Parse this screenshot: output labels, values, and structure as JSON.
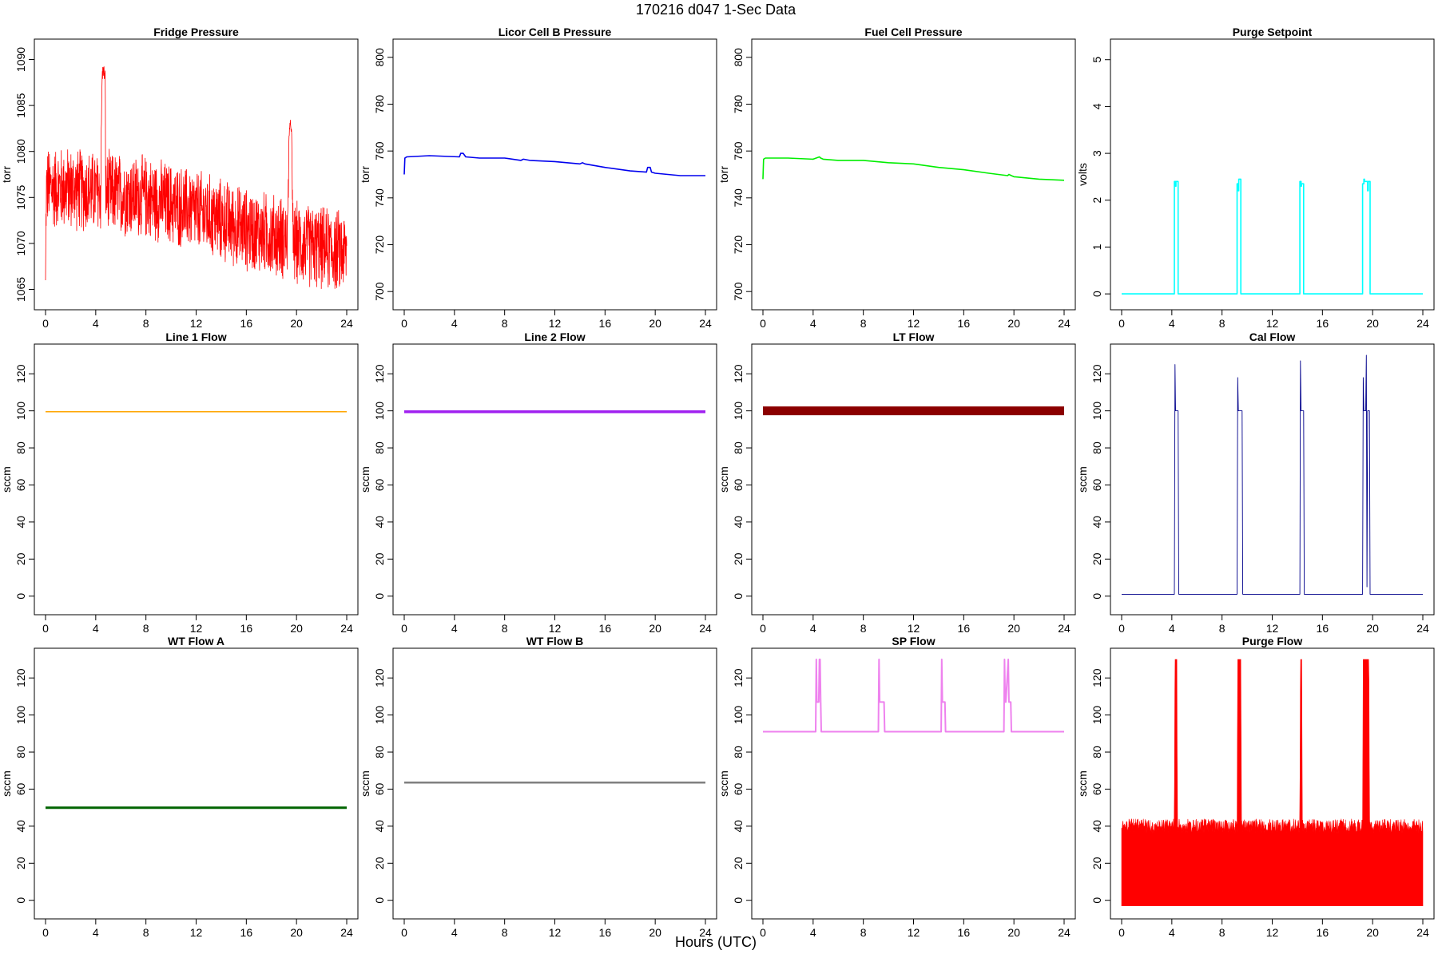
{
  "figure": {
    "title": "170216   d047   1-Sec Data",
    "xlabel": "Hours (UTC)"
  },
  "chart_data": [
    {
      "type": "line",
      "title": "Fridge Pressure",
      "ylabel": "torr",
      "color": "#ff0000",
      "xlim": [
        0,
        24
      ],
      "ylim": [
        1064,
        1091
      ],
      "xticks": [
        0,
        4,
        8,
        12,
        16,
        20,
        24
      ],
      "yticks": [
        1065,
        1070,
        1075,
        1080,
        1085,
        1090
      ],
      "noisy": true,
      "series": [
        {
          "x": [
            0,
            0.05,
            0.1,
            2,
            4.4,
            4.5,
            4.6,
            4.75,
            4.8,
            8,
            12,
            16,
            19.3,
            19.4,
            19.6,
            19.7,
            19.75,
            20,
            24
          ],
          "mean": [
            1066,
            1075,
            1076,
            1076,
            1075.5,
            1088,
            1089,
            1088,
            1075.5,
            1075,
            1073.5,
            1071.5,
            1070.5,
            1082,
            1083,
            1070.5,
            1070,
            1070,
            1069
          ],
          "band": [
            0,
            5,
            5,
            5,
            5,
            1,
            1,
            1,
            5,
            5,
            5,
            5,
            5,
            1,
            1,
            5,
            5,
            5,
            5
          ]
        }
      ]
    },
    {
      "type": "line",
      "title": "Licor Cell B Pressure",
      "ylabel": "torr",
      "color": "#0000ee",
      "xlim": [
        0,
        24
      ],
      "ylim": [
        697,
        803
      ],
      "xticks": [
        0,
        4,
        8,
        12,
        16,
        20,
        24
      ],
      "yticks": [
        700,
        720,
        740,
        760,
        780,
        800
      ],
      "series": [
        {
          "x": [
            0,
            0.05,
            0.2,
            2,
            4.4,
            4.5,
            4.7,
            4.9,
            6,
            8,
            9.3,
            9.5,
            10,
            12,
            14,
            14.2,
            14.4,
            16,
            18,
            19.3,
            19.4,
            19.6,
            19.7,
            20,
            22,
            24
          ],
          "y": [
            750,
            757,
            757.5,
            758,
            757.5,
            759,
            759,
            757.5,
            757,
            757,
            756,
            756.5,
            756,
            755.5,
            754.5,
            755,
            754.5,
            753,
            751.5,
            751,
            753,
            753,
            751,
            750.5,
            749.5,
            749.5
          ]
        }
      ]
    },
    {
      "type": "line",
      "title": "Fuel Cell Pressure",
      "ylabel": "torr",
      "color": "#00ee00",
      "xlim": [
        0,
        24
      ],
      "ylim": [
        697,
        803
      ],
      "xticks": [
        0,
        4,
        8,
        12,
        16,
        20,
        24
      ],
      "yticks": [
        700,
        720,
        740,
        760,
        780,
        800
      ],
      "series": [
        {
          "x": [
            0,
            0.05,
            0.2,
            2,
            4,
            4.5,
            4.6,
            4.8,
            6,
            8,
            10,
            12,
            14,
            16,
            18,
            19.5,
            19.6,
            19.8,
            20,
            22,
            24
          ],
          "y": [
            748,
            756.5,
            757,
            757,
            756.5,
            757.5,
            757,
            756.5,
            756,
            756,
            755,
            754.5,
            753,
            752,
            750.5,
            749.5,
            750,
            749.5,
            749,
            748,
            747.5
          ]
        }
      ]
    },
    {
      "type": "line",
      "title": "Purge Setpoint",
      "ylabel": "volts",
      "color": "#00ffff",
      "xlim": [
        0,
        24
      ],
      "ylim": [
        -0.1,
        5.2
      ],
      "xticks": [
        0,
        4,
        8,
        12,
        16,
        20,
        24
      ],
      "yticks": [
        0,
        1,
        2,
        3,
        4,
        5
      ],
      "series": [
        {
          "x": [
            0,
            4.2,
            4.2,
            4.3,
            4.3,
            4.33,
            4.33,
            4.5,
            4.5,
            9.2,
            9.2,
            9.3,
            9.3,
            9.33,
            9.33,
            9.5,
            9.5,
            14.2,
            14.2,
            14.3,
            14.3,
            14.33,
            14.33,
            14.5,
            14.5,
            19.2,
            19.2,
            19.3,
            19.3,
            19.35,
            19.35,
            19.6,
            19.6,
            19.65,
            19.65,
            19.8,
            19.8,
            24
          ],
          "y": [
            0,
            0,
            2.4,
            2.4,
            2.3,
            2.3,
            2.4,
            2.4,
            0,
            0,
            2.35,
            2.35,
            2.2,
            2.2,
            2.45,
            2.45,
            0,
            0,
            2.4,
            2.4,
            2.3,
            2.3,
            2.35,
            2.35,
            0,
            0,
            2.35,
            2.35,
            2.45,
            2.45,
            2.4,
            2.4,
            2.2,
            2.2,
            2.4,
            2.4,
            0,
            0
          ]
        }
      ]
    },
    {
      "type": "line",
      "title": "Line 1 Flow",
      "ylabel": "sccm",
      "color": "#ffa500",
      "xlim": [
        0,
        24
      ],
      "ylim": [
        -4,
        130
      ],
      "xticks": [
        0,
        4,
        8,
        12,
        16,
        20,
        24
      ],
      "yticks": [
        0,
        20,
        40,
        60,
        80,
        100,
        120
      ],
      "stroke": 1.5,
      "series": [
        {
          "x": [
            0,
            24
          ],
          "y": [
            99.5,
            99.5
          ]
        }
      ]
    },
    {
      "type": "line",
      "title": "Line 2 Flow",
      "ylabel": "sccm",
      "color": "#a020f0",
      "xlim": [
        0,
        24
      ],
      "ylim": [
        -4,
        130
      ],
      "xticks": [
        0,
        4,
        8,
        12,
        16,
        20,
        24
      ],
      "yticks": [
        0,
        20,
        40,
        60,
        80,
        100,
        120
      ],
      "stroke": 3.5,
      "series": [
        {
          "x": [
            0,
            24
          ],
          "y": [
            99.5,
            99.5
          ]
        }
      ]
    },
    {
      "type": "line",
      "title": "LT Flow",
      "ylabel": "sccm",
      "color": "#8b0000",
      "xlim": [
        0,
        24
      ],
      "ylim": [
        -4,
        130
      ],
      "xticks": [
        0,
        4,
        8,
        12,
        16,
        20,
        24
      ],
      "yticks": [
        0,
        20,
        40,
        60,
        80,
        100,
        120
      ],
      "stroke": 11,
      "series": [
        {
          "x": [
            0,
            24
          ],
          "y": [
            100,
            100
          ]
        }
      ]
    },
    {
      "type": "line",
      "title": "Cal Flow",
      "ylabel": "sccm",
      "color": "#00008b",
      "xlim": [
        0,
        24
      ],
      "ylim": [
        -4,
        130
      ],
      "xticks": [
        0,
        4,
        8,
        12,
        16,
        20,
        24
      ],
      "yticks": [
        0,
        20,
        40,
        60,
        80,
        100,
        120
      ],
      "stroke": 0.9,
      "series": [
        {
          "x": [
            0,
            4.2,
            4.25,
            4.3,
            4.5,
            4.55,
            9.2,
            9.25,
            9.3,
            9.6,
            9.65,
            14.2,
            14.25,
            14.3,
            14.5,
            14.55,
            19.2,
            19.25,
            19.3,
            19.45,
            19.5,
            19.55,
            19.6,
            19.75,
            19.8,
            24
          ],
          "y": [
            1,
            1,
            125,
            100,
            100,
            1,
            1,
            118,
            100,
            100,
            1,
            1,
            127,
            100,
            100,
            1,
            1,
            118,
            100,
            100,
            130,
            5,
            100,
            100,
            1,
            1
          ]
        }
      ]
    },
    {
      "type": "line",
      "title": "WT Flow A",
      "ylabel": "sccm",
      "color": "#006400",
      "xlim": [
        0,
        24
      ],
      "ylim": [
        -4,
        130
      ],
      "xticks": [
        0,
        4,
        8,
        12,
        16,
        20,
        24
      ],
      "yticks": [
        0,
        20,
        40,
        60,
        80,
        100,
        120
      ],
      "stroke": 3,
      "series": [
        {
          "x": [
            0,
            24
          ],
          "y": [
            50,
            50
          ]
        }
      ]
    },
    {
      "type": "line",
      "title": "WT Flow B",
      "ylabel": "sccm",
      "color": "#7f7f7f",
      "xlim": [
        0,
        24
      ],
      "ylim": [
        -4,
        130
      ],
      "xticks": [
        0,
        4,
        8,
        12,
        16,
        20,
        24
      ],
      "yticks": [
        0,
        20,
        40,
        60,
        80,
        100,
        120
      ],
      "stroke": 2.5,
      "series": [
        {
          "x": [
            0,
            24
          ],
          "y": [
            63.5,
            63.5
          ]
        }
      ]
    },
    {
      "type": "line",
      "title": "SP Flow",
      "ylabel": "sccm",
      "color": "#ee82ee",
      "xlim": [
        0,
        24
      ],
      "ylim": [
        -4,
        130
      ],
      "xticks": [
        0,
        4,
        8,
        12,
        16,
        20,
        24
      ],
      "yticks": [
        0,
        20,
        40,
        60,
        80,
        100,
        120
      ],
      "stroke": 2,
      "series": [
        {
          "x": [
            0,
            4.2,
            4.25,
            4.3,
            4.35,
            4.45,
            4.5,
            4.55,
            4.6,
            4.65,
            9.2,
            9.25,
            9.3,
            9.35,
            9.65,
            9.7,
            14.2,
            14.25,
            14.3,
            14.35,
            14.5,
            14.55,
            19.2,
            19.25,
            19.3,
            19.35,
            19.55,
            19.6,
            19.65,
            19.75,
            19.8,
            24
          ],
          "y": [
            91,
            91,
            130,
            107,
            107,
            107,
            130,
            130,
            107,
            91,
            91,
            130,
            107,
            107,
            107,
            91,
            91,
            130,
            107,
            107,
            107,
            91,
            91,
            130,
            107,
            107,
            130,
            107,
            107,
            107,
            91,
            91
          ]
        }
      ]
    },
    {
      "type": "line",
      "title": "Purge Flow",
      "ylabel": "sccm",
      "color": "#ff0000",
      "xlim": [
        0,
        24
      ],
      "ylim": [
        -4,
        130
      ],
      "xticks": [
        0,
        4,
        8,
        12,
        16,
        20,
        24
      ],
      "yticks": [
        0,
        20,
        40,
        60,
        80,
        100,
        120
      ],
      "fill": true,
      "noisy": true,
      "series": [
        {
          "x": [
            0,
            4.2,
            4.25,
            4.4,
            4.45,
            9.2,
            9.25,
            9.5,
            9.55,
            14.2,
            14.25,
            14.35,
            14.4,
            19.2,
            19.25,
            19.7,
            19.75,
            24
          ],
          "top": [
            44,
            44,
            130,
            130,
            44,
            44,
            130,
            130,
            44,
            44,
            130,
            130,
            44,
            44,
            130,
            130,
            44,
            44
          ],
          "bottom": -3
        }
      ]
    }
  ]
}
